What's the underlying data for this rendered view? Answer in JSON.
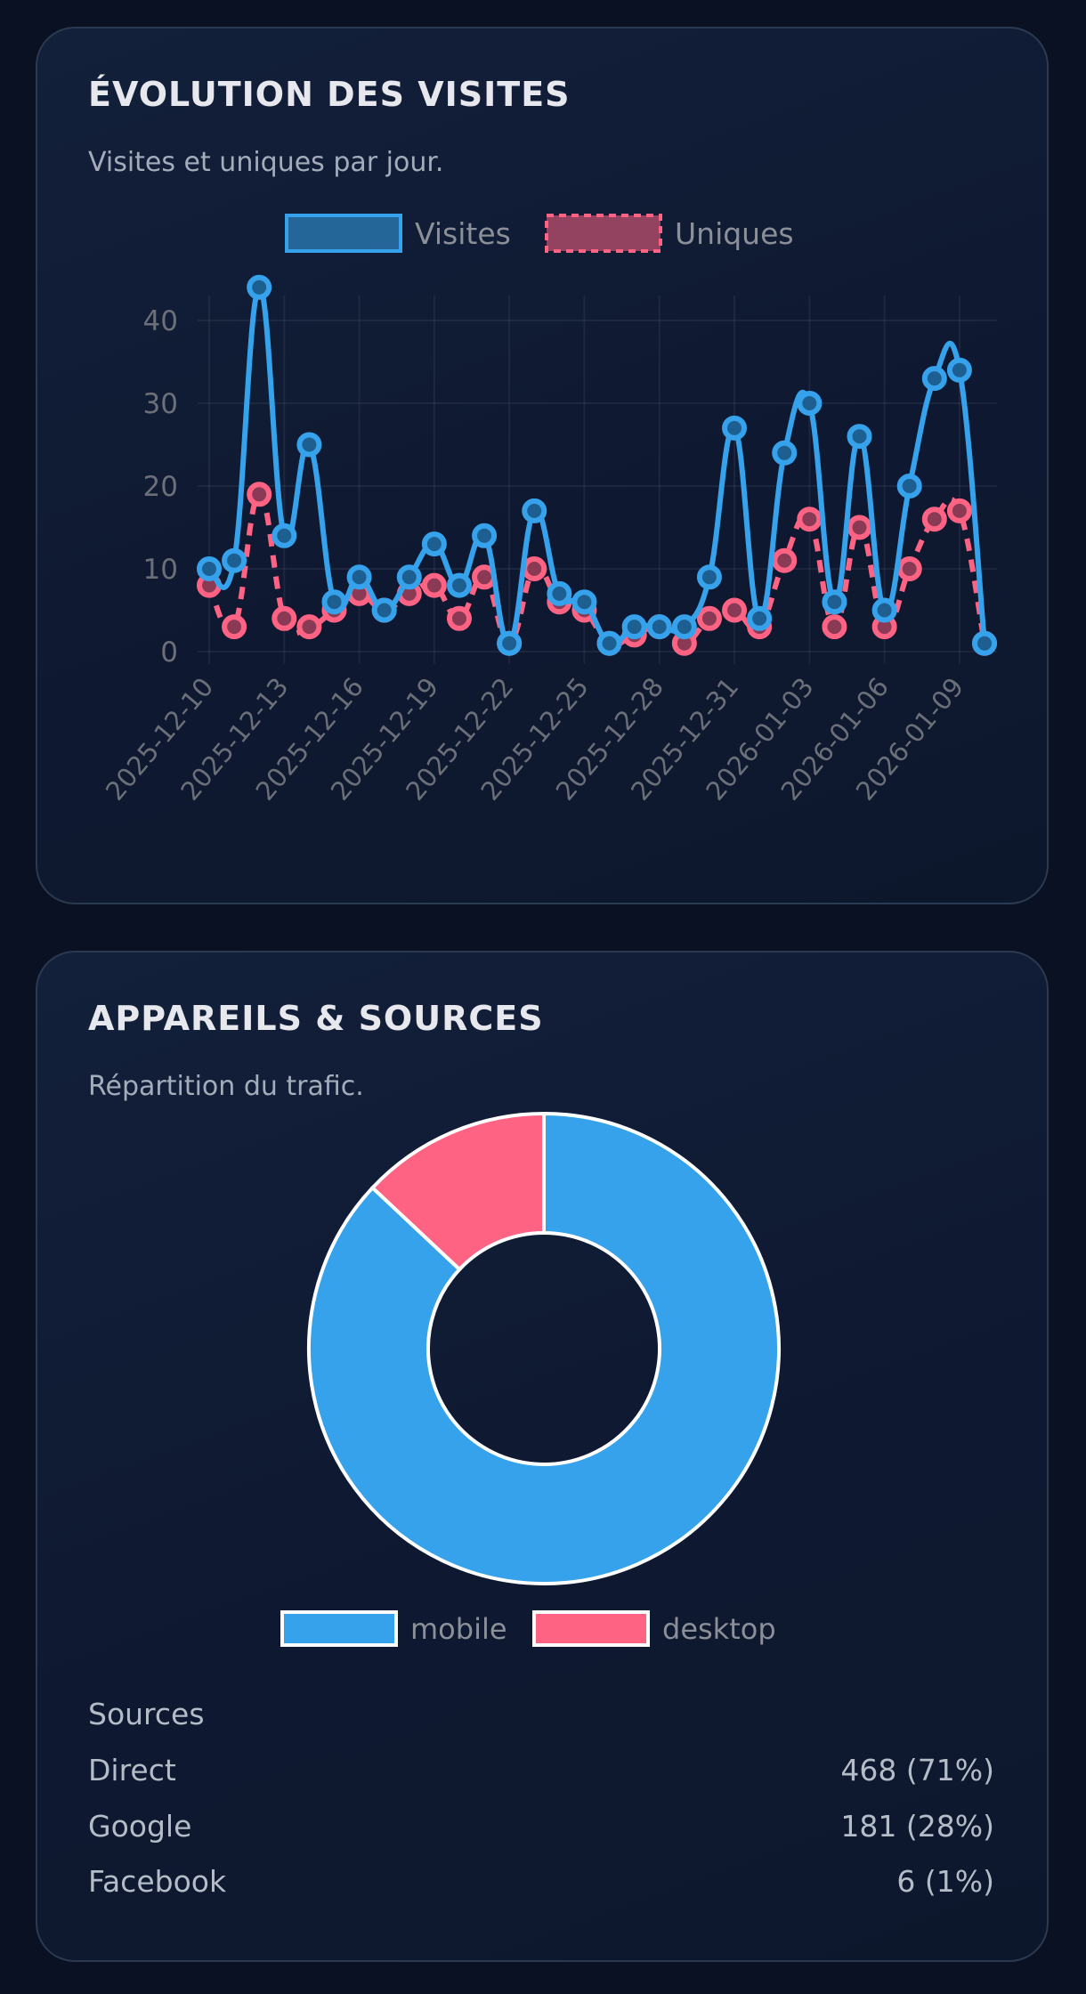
{
  "cards": {
    "visits": {
      "title": "ÉVOLUTION DES VISITES",
      "subtitle": "Visites et uniques par jour."
    },
    "devices": {
      "title": "APPAREILS & SOURCES",
      "subtitle": "Répartition du trafic."
    }
  },
  "colors": {
    "blue": "#36a2eb",
    "pink": "#ff6384",
    "tick": "#6b6f78"
  },
  "chart_data": [
    {
      "type": "line",
      "x": [
        "2025-12-10",
        "2025-12-11",
        "2025-12-12",
        "2025-12-13",
        "2025-12-14",
        "2025-12-15",
        "2025-12-16",
        "2025-12-17",
        "2025-12-18",
        "2025-12-19",
        "2025-12-20",
        "2025-12-21",
        "2025-12-22",
        "2025-12-23",
        "2025-12-24",
        "2025-12-25",
        "2025-12-26",
        "2025-12-27",
        "2025-12-28",
        "2025-12-29",
        "2025-12-30",
        "2025-12-31",
        "2026-01-01",
        "2026-01-02",
        "2026-01-03",
        "2026-01-04",
        "2026-01-05",
        "2026-01-06",
        "2026-01-07",
        "2026-01-08",
        "2026-01-09",
        "2026-01-10"
      ],
      "x_tick_labels": [
        "2025-12-10",
        "2025-12-13",
        "2025-12-16",
        "2025-12-19",
        "2025-12-22",
        "2025-12-25",
        "2025-12-28",
        "2025-12-31",
        "2026-01-03",
        "2026-01-06",
        "2026-01-09"
      ],
      "y_tick_labels": [
        "0",
        "10",
        "20",
        "30",
        "40"
      ],
      "ylim": [
        0,
        45
      ],
      "grid": true,
      "legend": "top",
      "series": [
        {
          "name": "Visites",
          "color": "#36a2eb",
          "style": "solid",
          "values": [
            10,
            11,
            44,
            14,
            25,
            6,
            9,
            5,
            9,
            13,
            8,
            14,
            1,
            17,
            7,
            6,
            1,
            3,
            3,
            3,
            9,
            27,
            4,
            24,
            30,
            6,
            26,
            5,
            20,
            33,
            34,
            1
          ]
        },
        {
          "name": "Uniques",
          "color": "#ff6384",
          "style": "dashed",
          "values": [
            8,
            3,
            19,
            4,
            3,
            5,
            7,
            5,
            7,
            8,
            4,
            9,
            1,
            10,
            6,
            5,
            1,
            2,
            3,
            1,
            4,
            5,
            3,
            11,
            16,
            3,
            15,
            3,
            10,
            16,
            17,
            1
          ]
        }
      ]
    },
    {
      "type": "pie",
      "variant": "doughnut",
      "categories": [
        "mobile",
        "desktop"
      ],
      "values": [
        87,
        13
      ],
      "colors": [
        "#36a2eb",
        "#ff6384"
      ],
      "legend": "bottom"
    }
  ],
  "sources": {
    "heading": "Sources",
    "rows": [
      {
        "label": "Direct",
        "value": "468 (71%)"
      },
      {
        "label": "Google",
        "value": "181 (28%)"
      },
      {
        "label": "Facebook",
        "value": "6 (1%)"
      }
    ]
  }
}
